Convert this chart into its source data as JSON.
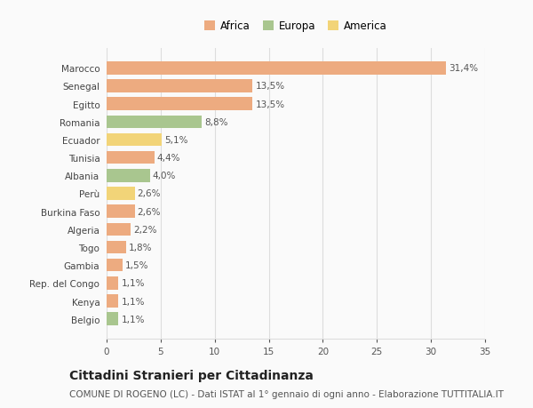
{
  "title": "Cittadini Stranieri per Cittadinanza",
  "subtitle": "COMUNE DI ROGENO (LC) - Dati ISTAT al 1° gennaio di ogni anno - Elaborazione TUTTITALIA.IT",
  "categories": [
    "Marocco",
    "Senegal",
    "Egitto",
    "Romania",
    "Ecuador",
    "Tunisia",
    "Albania",
    "Perù",
    "Burkina Faso",
    "Algeria",
    "Togo",
    "Gambia",
    "Rep. del Congo",
    "Kenya",
    "Belgio"
  ],
  "values": [
    31.4,
    13.5,
    13.5,
    8.8,
    5.1,
    4.4,
    4.0,
    2.6,
    2.6,
    2.2,
    1.8,
    1.5,
    1.1,
    1.1,
    1.1
  ],
  "labels": [
    "31,4%",
    "13,5%",
    "13,5%",
    "8,8%",
    "5,1%",
    "4,4%",
    "4,0%",
    "2,6%",
    "2,6%",
    "2,2%",
    "1,8%",
    "1,5%",
    "1,1%",
    "1,1%",
    "1,1%"
  ],
  "continents": [
    "Africa",
    "Africa",
    "Africa",
    "Europa",
    "America",
    "Africa",
    "Europa",
    "America",
    "Africa",
    "Africa",
    "Africa",
    "Africa",
    "Africa",
    "Africa",
    "Europa"
  ],
  "colors": {
    "Africa": "#EDAB80",
    "Europa": "#A9C68F",
    "America": "#F2D478"
  },
  "xlim": [
    0,
    35
  ],
  "xticks": [
    0,
    5,
    10,
    15,
    20,
    25,
    30,
    35
  ],
  "background_color": "#FAFAFA",
  "grid_color": "#DDDDDD",
  "bar_height": 0.72,
  "title_fontsize": 10,
  "subtitle_fontsize": 7.5,
  "label_fontsize": 7.5,
  "tick_fontsize": 7.5,
  "legend_fontsize": 8.5
}
